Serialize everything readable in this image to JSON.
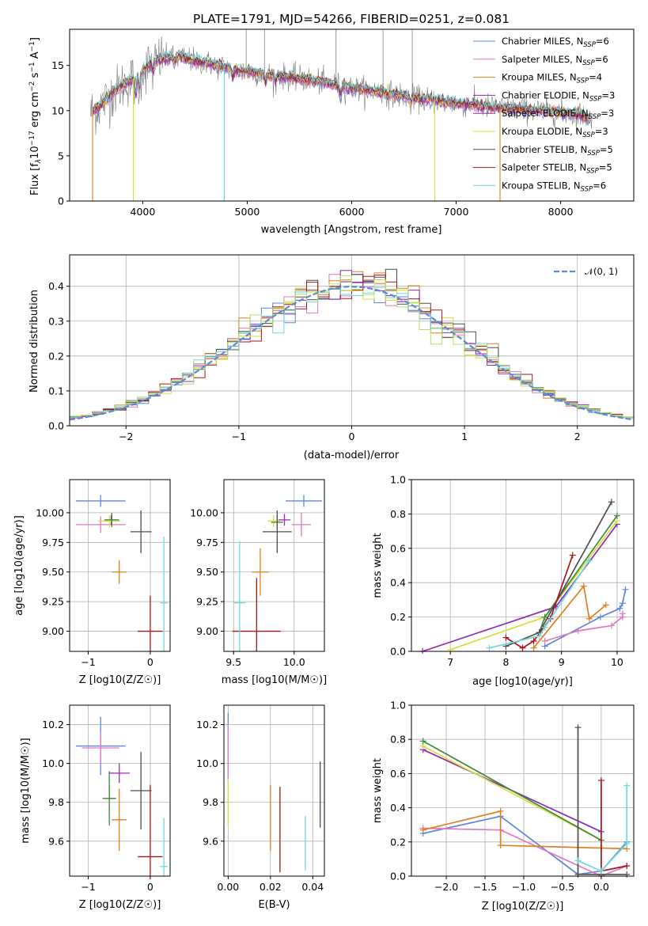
{
  "colors": {
    "chabrier_miles": "#5f86dc",
    "salpeter_miles": "#e377c2",
    "kroupa_miles": "#e07f1f",
    "chabrier_elodie": "#8e2bb0",
    "salpeter_elodie": "#9a2ab0",
    "kroupa_elodie": "#d7dd3a",
    "chabrier_stelib": "#4d4d4d",
    "salpeter_stelib": "#a8161b",
    "kroupa_stelib": "#6fd8dd",
    "elodie_green": "#b5e06a",
    "gaussian": "#5b8bd6"
  },
  "chart_data": [
    {
      "id": "spectrum",
      "type": "line",
      "title": "PLATE=1791, MJD=54266, FIBERID=0251, z=0.081",
      "xlabel": "wavelength [Angstrom, rest frame]",
      "ylabel": "Flux [f_λ10^-17 erg cm^-2 s^-1 A^-1]",
      "ylabel_parts": {
        "a": "Flux [f",
        "b": "λ",
        "c": "10",
        "d": "−17",
        "e": " erg cm",
        "f": "−2",
        "g": " s",
        "h": "−1",
        "i": " A",
        "j": "−1",
        "k": "]"
      },
      "xlim": [
        3300,
        8700
      ],
      "ylim": [
        0,
        19
      ],
      "xticks": [
        "4000",
        "5000",
        "6000",
        "7000",
        "8000"
      ],
      "yticks": [
        "0",
        "5",
        "10",
        "15"
      ],
      "continuum": {
        "x": [
          3500,
          3600,
          3700,
          3800,
          3900,
          4000,
          4100,
          4200,
          4300,
          4400,
          4500,
          4600,
          4700,
          4800,
          4900,
          5000,
          5200,
          5400,
          5600,
          5800,
          6000,
          6200,
          6400,
          6600,
          6800,
          7000,
          7200,
          7400,
          7600,
          7800,
          8000,
          8200,
          8300
        ],
        "y": [
          9.8,
          10.6,
          11.8,
          12.8,
          13.5,
          14.4,
          15.4,
          15.8,
          16.0,
          15.8,
          15.5,
          15.3,
          15.0,
          14.8,
          14.5,
          14.3,
          14.0,
          13.7,
          13.4,
          13.0,
          12.5,
          12.2,
          11.8,
          11.4,
          11.1,
          10.8,
          10.6,
          10.3,
          10.2,
          10.0,
          9.8,
          9.5,
          9.0
        ]
      },
      "series": [
        {
          "name": "Chabrier MILES",
          "nssp": "6",
          "color": "#5f86dc"
        },
        {
          "name": "Salpeter MILES",
          "nssp": "6",
          "color": "#e377c2"
        },
        {
          "name": "Kroupa MILES",
          "nssp": "4",
          "color": "#e07f1f"
        },
        {
          "name": "Chabrier ELODIE",
          "nssp": "3",
          "color": "#8e2bb0"
        },
        {
          "name": "Salpeter ELODIE",
          "nssp": "3",
          "color": "#9a2ab0"
        },
        {
          "name": "Kroupa ELODIE",
          "nssp": "3",
          "color": "#d7dd3a"
        },
        {
          "name": "Chabrier STELIB",
          "nssp": "5",
          "color": "#4d4d4d"
        },
        {
          "name": "Salpeter STELIB",
          "nssp": "5",
          "color": "#a8161b"
        },
        {
          "name": "Kroupa STELIB",
          "nssp": "6",
          "color": "#6fd8dd"
        }
      ],
      "legend_nssp_label": "N",
      "legend_nssp_sub": "SSP",
      "legend_location": "upper right"
    },
    {
      "id": "residuals",
      "type": "histogram",
      "xlabel": "(data-model)/error",
      "ylabel": "Normed distribution",
      "xlim": [
        -2.5,
        2.5
      ],
      "ylim": [
        0,
        0.49
      ],
      "xticks": [
        "−2",
        "−1",
        "0",
        "1",
        "2"
      ],
      "xtick_values": [
        -2,
        -1,
        0,
        1,
        2
      ],
      "yticks": [
        "0.0",
        "0.1",
        "0.2",
        "0.3",
        "0.4"
      ],
      "ytick_values": [
        0,
        0.1,
        0.2,
        0.3,
        0.4
      ],
      "grid": true,
      "legend": "𝒩(0, 1)",
      "legend_location": "upper right",
      "bin_width": 0.1,
      "series_colors": [
        "#5f86dc",
        "#e377c2",
        "#e07f1f",
        "#8e2bb0",
        "#d7dd3a",
        "#4d4d4d",
        "#a8161b",
        "#6fd8dd",
        "#b5e06a"
      ]
    },
    {
      "id": "age_vs_Z",
      "type": "errorbar",
      "xlabel": "Z [log10(Z/Z☉)]",
      "ylabel": "age [log10(age/yr)]",
      "xlim": [
        -1.3,
        0.32
      ],
      "ylim": [
        8.83,
        10.28
      ],
      "xticks": [
        "−1",
        "0"
      ],
      "xtick_values": [
        -1,
        0
      ],
      "yticks": [
        "9.00",
        "9.25",
        "9.50",
        "9.75",
        "10.00"
      ],
      "ytick_values": [
        9.0,
        9.25,
        9.5,
        9.75,
        10.0
      ],
      "points": [
        {
          "x": -0.8,
          "y": 10.1,
          "xerr": 0.4,
          "yerr": 0.05,
          "color": "#5f86dc"
        },
        {
          "x": -0.8,
          "y": 9.9,
          "xerr": 0.4,
          "yerr": 0.07,
          "color": "#e377c2"
        },
        {
          "x": -0.63,
          "y": 9.94,
          "xerr": 0.1,
          "yerr": 0.04,
          "color": "#9a2ab0"
        },
        {
          "x": -0.66,
          "y": 9.93,
          "xerr": 0.18,
          "yerr": 0.05,
          "color": "#d7dd3a"
        },
        {
          "x": -0.62,
          "y": 9.94,
          "xerr": 0.12,
          "yerr": 0.06,
          "color": "#3d8a3d"
        },
        {
          "x": -0.5,
          "y": 9.5,
          "xerr": 0.12,
          "yerr": 0.1,
          "color": "#e07f1f"
        },
        {
          "x": -0.15,
          "y": 9.84,
          "xerr": 0.17,
          "yerr": 0.18,
          "color": "#4d4d4d"
        },
        {
          "x": 0.0,
          "y": 9.0,
          "xerr": 0.2,
          "yerr": 0.3,
          "color": "#a8161b"
        },
        {
          "x": 0.22,
          "y": 9.24,
          "xerr": 0.06,
          "yerr": 0.56,
          "color": "#6fd8dd"
        }
      ]
    },
    {
      "id": "age_vs_mass",
      "type": "errorbar",
      "xlabel": "mass [log10(M/M☉)]",
      "ylabel": "",
      "xlim": [
        9.42,
        10.25
      ],
      "ylim": [
        8.83,
        10.28
      ],
      "xticks": [
        "9.5",
        "10.0"
      ],
      "xtick_values": [
        9.5,
        10.0
      ],
      "yticks": [
        "9.00",
        "9.25",
        "9.50",
        "9.75",
        "10.00"
      ],
      "ytick_values": [
        9.0,
        9.25,
        9.5,
        9.75,
        10.0
      ],
      "points": [
        {
          "x": 10.08,
          "y": 10.1,
          "xerr": 0.15,
          "yerr": 0.05,
          "color": "#5f86dc"
        },
        {
          "x": 10.06,
          "y": 9.9,
          "xerr": 0.08,
          "yerr": 0.1,
          "color": "#e377c2"
        },
        {
          "x": 9.92,
          "y": 9.94,
          "xerr": 0.05,
          "yerr": 0.05,
          "color": "#9a2ab0"
        },
        {
          "x": 9.83,
          "y": 9.93,
          "xerr": 0.05,
          "yerr": 0.05,
          "color": "#d7dd3a"
        },
        {
          "x": 9.86,
          "y": 9.92,
          "xerr": 0.05,
          "yerr": 0.06,
          "color": "#3d8a3d"
        },
        {
          "x": 9.72,
          "y": 9.5,
          "xerr": 0.07,
          "yerr": 0.2,
          "color": "#e07f1f"
        },
        {
          "x": 9.86,
          "y": 9.84,
          "xerr": 0.12,
          "yerr": 0.18,
          "color": "#4d4d4d"
        },
        {
          "x": 9.69,
          "y": 9.0,
          "xerr": 0.2,
          "yerr": 0.45,
          "color": "#a8161b"
        },
        {
          "x": 9.55,
          "y": 9.24,
          "xerr": 0.05,
          "yerr": 0.52,
          "color": "#6fd8dd"
        }
      ]
    },
    {
      "id": "weight_vs_age",
      "type": "line",
      "xlabel": "age [log10(age/yr)]",
      "ylabel": "mass weight",
      "xlim": [
        6.3,
        10.3
      ],
      "ylim": [
        0,
        1.0
      ],
      "xticks": [
        "7",
        "8",
        "9",
        "10"
      ],
      "xtick_values": [
        7,
        8,
        9,
        10
      ],
      "yticks": [
        "0.0",
        "0.2",
        "0.4",
        "0.6",
        "0.8",
        "1.0"
      ],
      "ytick_values": [
        0,
        0.2,
        0.4,
        0.6,
        0.8,
        1.0
      ],
      "series": [
        {
          "color": "#5f86dc",
          "points": [
            [
              8.7,
              0.03
            ],
            [
              9.7,
              0.2
            ],
            [
              10.05,
              0.25
            ],
            [
              10.1,
              0.28
            ],
            [
              10.15,
              0.36
            ]
          ]
        },
        {
          "color": "#e377c2",
          "points": [
            [
              8.7,
              0.06
            ],
            [
              9.3,
              0.12
            ],
            [
              9.9,
              0.15
            ],
            [
              10.1,
              0.2
            ],
            [
              10.1,
              0.22
            ]
          ]
        },
        {
          "color": "#e07f1f",
          "points": [
            [
              8.5,
              0.02
            ],
            [
              9.4,
              0.38
            ],
            [
              9.5,
              0.19
            ],
            [
              9.8,
              0.27
            ]
          ]
        },
        {
          "color": "#8e2bb0",
          "points": [
            [
              6.5,
              0.0
            ],
            [
              8.9,
              0.26
            ],
            [
              10.0,
              0.74
            ]
          ]
        },
        {
          "color": "#d7dd3a",
          "points": [
            [
              7.0,
              0.01
            ],
            [
              8.7,
              0.2
            ],
            [
              10.0,
              0.76
            ]
          ]
        },
        {
          "color": "#3d8a3d",
          "points": [
            [
              8.6,
              0.11
            ],
            [
              8.7,
              0.2
            ],
            [
              10.0,
              0.79
            ]
          ]
        },
        {
          "color": "#4d4d4d",
          "points": [
            [
              8.0,
              0.03
            ],
            [
              8.6,
              0.11
            ],
            [
              9.9,
              0.87
            ]
          ]
        },
        {
          "color": "#a8161b",
          "points": [
            [
              8.0,
              0.08
            ],
            [
              8.3,
              0.02
            ],
            [
              8.5,
              0.06
            ],
            [
              8.8,
              0.19
            ],
            [
              9.2,
              0.56
            ]
          ]
        },
        {
          "color": "#6fd8dd",
          "points": [
            [
              7.7,
              0.02
            ],
            [
              8.6,
              0.09
            ],
            [
              8.7,
              0.14
            ],
            [
              9.5,
              0.53
            ]
          ]
        }
      ]
    },
    {
      "id": "mass_vs_Z",
      "type": "errorbar",
      "xlabel": "Z [log10(Z/Z☉)]",
      "ylabel": "mass [log10(M/M☉)]",
      "xlim": [
        -1.3,
        0.32
      ],
      "ylim": [
        9.42,
        10.3
      ],
      "xticks": [
        "−1",
        "0"
      ],
      "xtick_values": [
        -1,
        0
      ],
      "yticks": [
        "9.6",
        "9.8",
        "10.0",
        "10.2"
      ],
      "ytick_values": [
        9.6,
        9.8,
        10.0,
        10.2
      ],
      "points": [
        {
          "x": -0.8,
          "y": 10.09,
          "xerr": 0.4,
          "yerr": 0.15,
          "color": "#5f86dc"
        },
        {
          "x": -0.8,
          "y": 10.08,
          "xerr": 0.3,
          "yerr": 0.08,
          "color": "#e377c2"
        },
        {
          "x": -0.5,
          "y": 9.95,
          "xerr": 0.17,
          "yerr": 0.05,
          "color": "#9a2ab0"
        },
        {
          "x": -0.66,
          "y": 9.82,
          "xerr": 0.1,
          "yerr": 0.05,
          "color": "#d7dd3a"
        },
        {
          "x": -0.66,
          "y": 9.82,
          "xerr": 0.11,
          "yerr": 0.14,
          "color": "#3d8a3d"
        },
        {
          "x": -0.5,
          "y": 9.71,
          "xerr": 0.12,
          "yerr": 0.16,
          "color": "#e07f1f"
        },
        {
          "x": -0.15,
          "y": 9.86,
          "xerr": 0.17,
          "yerr": 0.2,
          "color": "#4d4d4d"
        },
        {
          "x": 0.0,
          "y": 9.52,
          "xerr": 0.2,
          "yerr": 0.37,
          "color": "#a8161b"
        },
        {
          "x": 0.22,
          "y": 9.47,
          "xerr": 0.06,
          "yerr": 0.25,
          "color": "#6fd8dd"
        }
      ]
    },
    {
      "id": "mass_vs_ebv",
      "type": "errorbar",
      "xlabel": "E(B-V)",
      "ylabel": "",
      "xlim": [
        -0.002,
        0.0455
      ],
      "ylim": [
        9.42,
        10.3
      ],
      "xticks": [
        "0.00",
        "0.02",
        "0.04"
      ],
      "xtick_values": [
        0.0,
        0.02,
        0.04
      ],
      "yticks": [
        "9.6",
        "9.8",
        "10.0",
        "10.2"
      ],
      "ytick_values": [
        9.6,
        9.8,
        10.0,
        10.2
      ],
      "points": [
        {
          "x": 0.0,
          "y": 10.09,
          "xerr": 0,
          "yerr": 0.17,
          "color": "#5f86dc"
        },
        {
          "x": 0.0,
          "y": 10.05,
          "xerr": 0,
          "yerr": 0.15,
          "color": "#e377c2"
        },
        {
          "x": 0.0,
          "y": 9.8,
          "xerr": 0,
          "yerr": 0.12,
          "color": "#d7dd3a"
        },
        {
          "x": 0.02,
          "y": 9.72,
          "xerr": 0,
          "yerr": 0.17,
          "color": "#e07f1f"
        },
        {
          "x": 0.0245,
          "y": 9.66,
          "xerr": 0,
          "yerr": 0.22,
          "color": "#a8161b"
        },
        {
          "x": 0.0365,
          "y": 9.59,
          "xerr": 0,
          "yerr": 0.14,
          "color": "#6fd8dd"
        },
        {
          "x": 0.0435,
          "y": 9.84,
          "xerr": 0,
          "yerr": 0.17,
          "color": "#4d4d4d"
        }
      ]
    },
    {
      "id": "weight_vs_Z",
      "type": "line",
      "xlabel": "Z [log10(Z/Z☉)]",
      "ylabel": "mass weight",
      "xlim": [
        -2.45,
        0.42
      ],
      "ylim": [
        0,
        1.0
      ],
      "xticks": [
        "−2.0",
        "−1.5",
        "−1.0",
        "−0.5",
        "0.0"
      ],
      "xtick_values": [
        -2.0,
        -1.5,
        -1.0,
        -0.5,
        0.0
      ],
      "yticks": [
        "0.0",
        "0.2",
        "0.4",
        "0.6",
        "0.8",
        "1.0"
      ],
      "ytick_values": [
        0,
        0.2,
        0.4,
        0.6,
        0.8,
        1.0
      ],
      "series": [
        {
          "color": "#5f86dc",
          "points": [
            [
              -2.3,
              0.25
            ],
            [
              -1.3,
              0.35
            ],
            [
              -0.3,
              0.01
            ],
            [
              0.0,
              0.03
            ],
            [
              0.33,
              0.2
            ]
          ]
        },
        {
          "color": "#e377c2",
          "points": [
            [
              -2.3,
              0.28
            ],
            [
              -1.3,
              0.27
            ],
            [
              0.0,
              0.0
            ],
            [
              0.33,
              0.06
            ]
          ]
        },
        {
          "color": "#e07f1f",
          "points": [
            [
              -2.3,
              0.27
            ],
            [
              -1.3,
              0.38
            ],
            [
              -1.3,
              0.18
            ],
            [
              0.33,
              0.16
            ]
          ]
        },
        {
          "color": "#8e2bb0",
          "points": [
            [
              -2.3,
              0.74
            ],
            [
              0.0,
              0.26
            ]
          ]
        },
        {
          "color": "#d7dd3a",
          "points": [
            [
              -2.3,
              0.76
            ],
            [
              0.0,
              0.21
            ]
          ]
        },
        {
          "color": "#3d8a3d",
          "points": [
            [
              -2.3,
              0.79
            ],
            [
              0.0,
              0.21
            ]
          ]
        },
        {
          "color": "#4d4d4d",
          "points": [
            [
              -0.3,
              0.87
            ],
            [
              -0.3,
              0.01
            ],
            [
              0.33,
              0.01
            ]
          ]
        },
        {
          "color": "#a8161b",
          "points": [
            [
              0.0,
              0.56
            ],
            [
              0.0,
              0.03
            ],
            [
              0.33,
              0.06
            ]
          ]
        },
        {
          "color": "#6fd8dd",
          "points": [
            [
              -0.3,
              0.09
            ],
            [
              0.0,
              0.03
            ],
            [
              0.33,
              0.19
            ],
            [
              0.33,
              0.53
            ]
          ]
        }
      ]
    }
  ]
}
